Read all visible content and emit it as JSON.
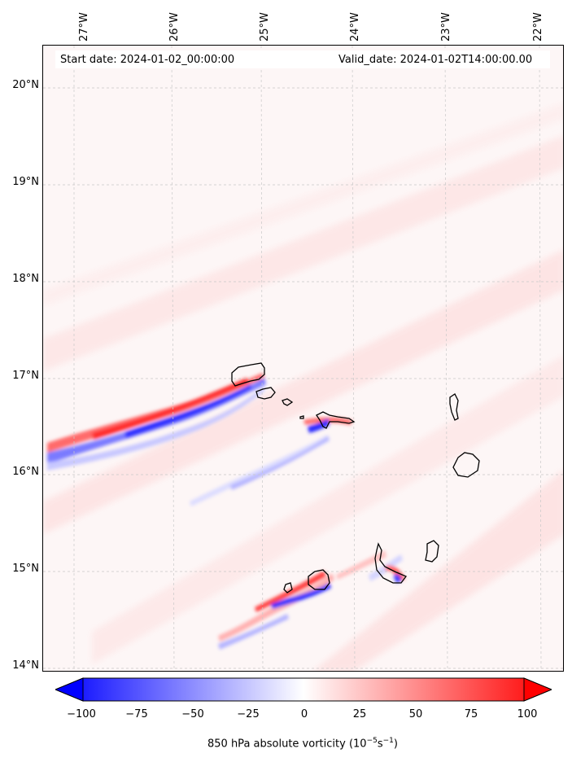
{
  "header": {
    "start_date": "Start date: 2024-01-02_00:00:00",
    "valid_date": "Valid_date: 2024-01-02T14:00:00.00"
  },
  "longitude_labels": [
    "27°W",
    "26°W",
    "25°W",
    "24°W",
    "23°W",
    "22°W"
  ],
  "latitude_labels": [
    "20°N",
    "19°N",
    "18°N",
    "17°N",
    "16°N",
    "15°N",
    "14°N"
  ],
  "colorbar": {
    "ticks": [
      "−100",
      "−75",
      "−50",
      "−25",
      "0",
      "25",
      "50",
      "75",
      "100"
    ],
    "label_prefix": "850 hPa absolute vorticity (10",
    "label_exp1": "−5",
    "label_mid": "s",
    "label_exp2": "−1",
    "label_suffix": ")",
    "range": [
      -100,
      100
    ],
    "min_color": "#0000ff",
    "zero_color": "#ffffff",
    "max_color": "#ff0000"
  },
  "map": {
    "lon_range": [
      -27.3,
      -21.75
    ],
    "lat_range": [
      13.95,
      20.4
    ],
    "background_color": "#fdf6f6"
  }
}
